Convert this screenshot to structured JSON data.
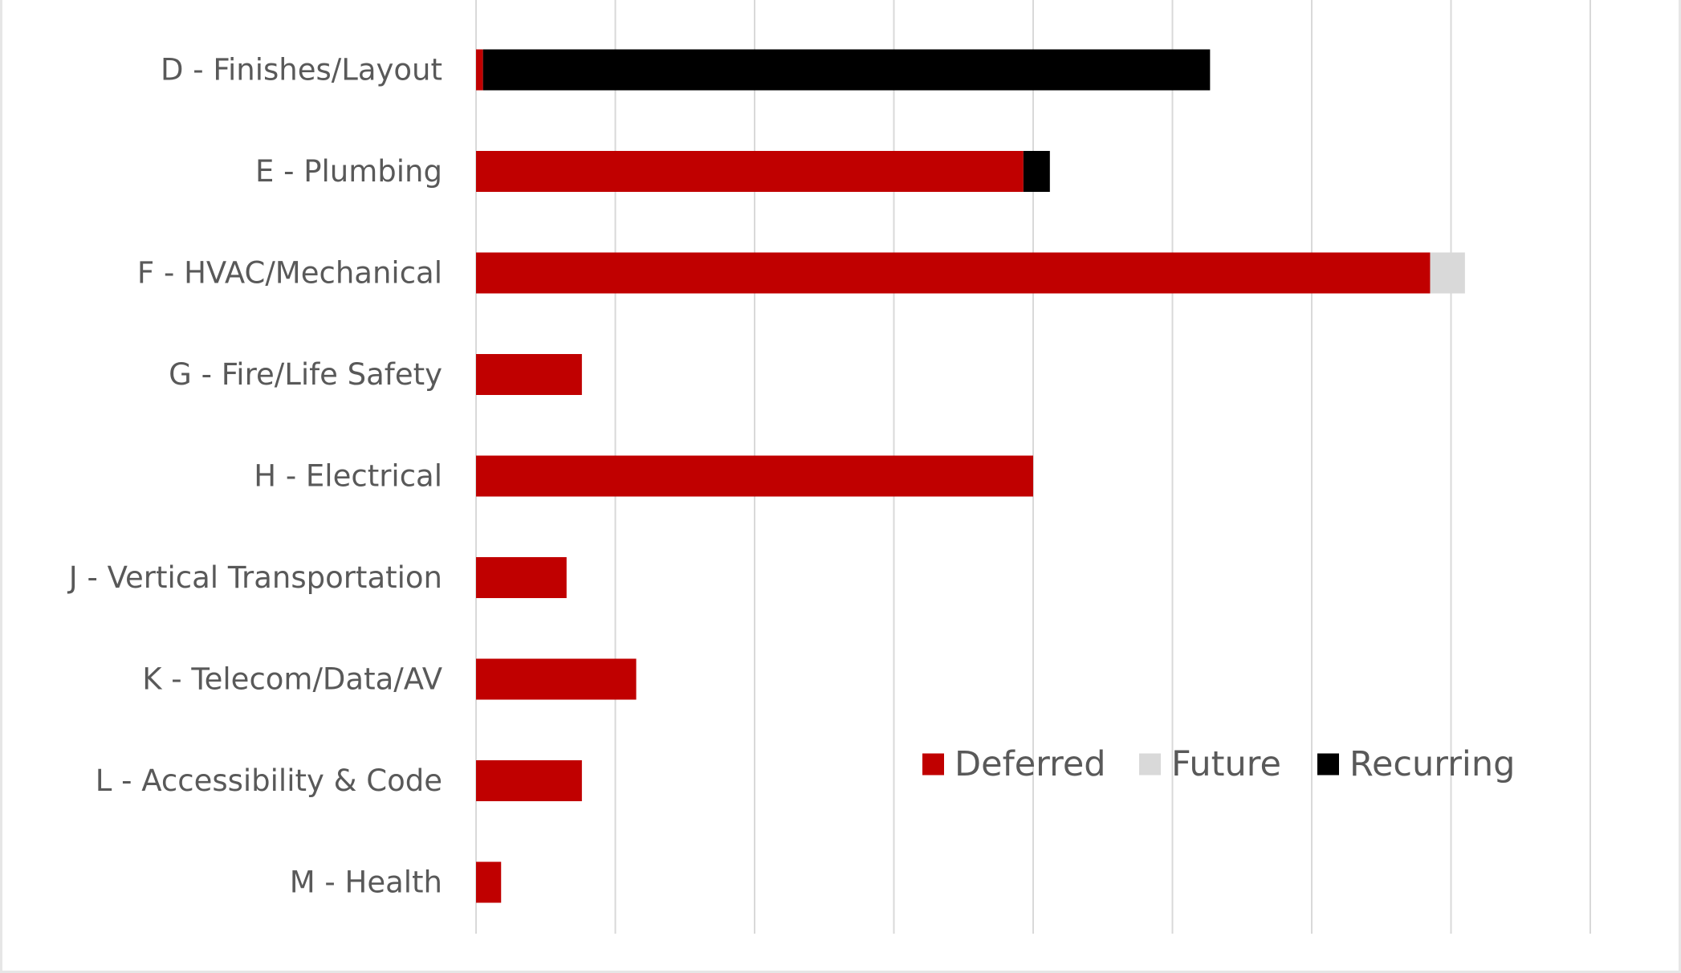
{
  "chart_data": {
    "type": "bar",
    "orientation": "horizontal",
    "stacked": true,
    "categories": [
      "D - Finishes/Layout",
      "E - Plumbing",
      "F - HVAC/Mechanical",
      "G - Fire/Life Safety",
      "H - Electrical",
      "J - Vertical Transportation",
      "K - Telecom/Data/AV",
      "L - Accessibility & Code",
      "M - Health"
    ],
    "series": [
      {
        "name": "Deferred",
        "color": "#c00000",
        "values": [
          0.05,
          3.93,
          6.85,
          0.76,
          4.0,
          0.65,
          1.15,
          0.76,
          0.18
        ]
      },
      {
        "name": "Future",
        "color": "#d9d9d9",
        "values": [
          0,
          0,
          0.25,
          0,
          0,
          0,
          0,
          0,
          0
        ]
      },
      {
        "name": "Recurring",
        "color": "#000000",
        "values": [
          5.22,
          0.19,
          0,
          0,
          0,
          0,
          0,
          0,
          0
        ]
      }
    ],
    "xlim": [
      0,
      8
    ],
    "x_gridlines": [
      0,
      1,
      2,
      3,
      4,
      5,
      6,
      7,
      8
    ],
    "x_tick_labels_shown": false,
    "grid": true,
    "legend_position": "bottom-right inside plot"
  }
}
